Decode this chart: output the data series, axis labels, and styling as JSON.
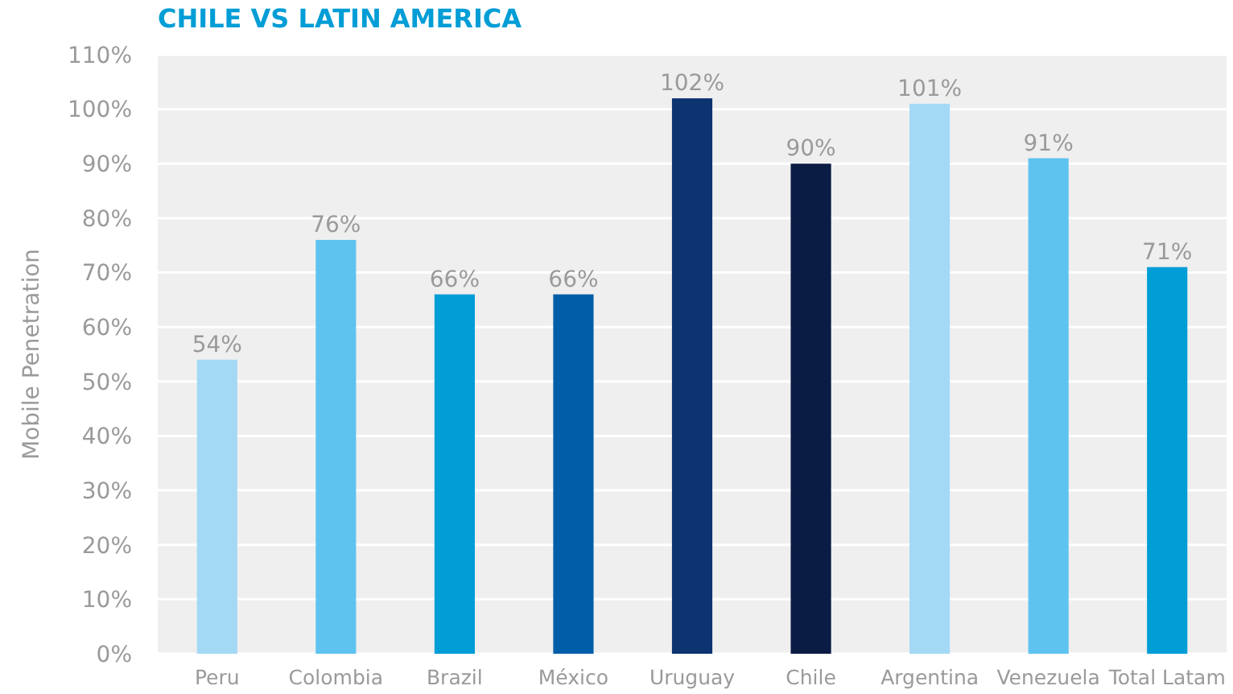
{
  "chart_data": {
    "type": "bar",
    "title": "CHILE VS LATIN AMERICA",
    "ylabel": "Mobile Penetration",
    "categories": [
      "Peru",
      "Colombia",
      "Brazil",
      "México",
      "Uruguay",
      "Chile",
      "Argentina",
      "Venezuela",
      "Total Latam"
    ],
    "values": [
      54,
      76,
      66,
      66,
      102,
      90,
      101,
      91,
      71
    ],
    "colors": [
      "#a4d9f5",
      "#5fc3f0",
      "#009dd6",
      "#005ea8",
      "#0d3370",
      "#0a1b44",
      "#a4d9f5",
      "#5fc3f0",
      "#009dd6"
    ],
    "ylim": [
      0,
      110
    ],
    "yticks": [
      {
        "value": 0,
        "label": "0%"
      },
      {
        "value": 10,
        "label": "10%"
      },
      {
        "value": 20,
        "label": "20%"
      },
      {
        "value": 30,
        "label": "30%"
      },
      {
        "value": 40,
        "label": "40%"
      },
      {
        "value": 50,
        "label": "50%"
      },
      {
        "value": 60,
        "label": "60%"
      },
      {
        "value": 70,
        "label": "70%"
      },
      {
        "value": 80,
        "label": "80%"
      },
      {
        "value": 90,
        "label": "90%"
      },
      {
        "value": 100,
        "label": "100%"
      },
      {
        "value": 110,
        "label": "110%"
      }
    ],
    "value_labels": [
      "54%",
      "76%",
      "66%",
      "66%",
      "102%",
      "90%",
      "101%",
      "91%",
      "71%"
    ],
    "grid": "y"
  }
}
